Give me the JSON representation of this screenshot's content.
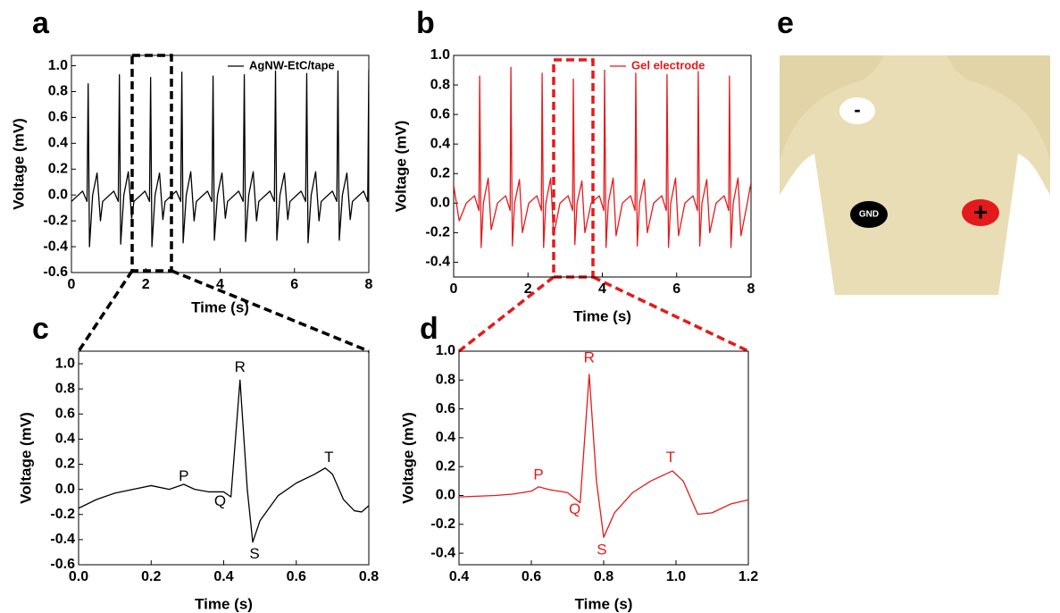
{
  "panel_labels": [
    "a",
    "b",
    "c",
    "d",
    "e"
  ],
  "chart_data": [
    {
      "type": "line",
      "xlabel": "Time (s)",
      "ylabel": "Voltage (mV)",
      "xlim": [
        0,
        8
      ],
      "ylim": [
        -0.6,
        1.08
      ],
      "xticks": [
        0,
        2,
        4,
        6,
        8
      ],
      "yticks": [
        -0.6,
        -0.4,
        -0.2,
        {
          "value": 0,
          "label": "0.0"
        },
        0.2,
        0.4,
        0.6,
        0.8,
        {
          "value": 1,
          "label": "1.0"
        }
      ],
      "legend": "upper right",
      "series": [
        {
          "name": "AgNW-EtC/tape",
          "color": "#000000",
          "x": [
            0.0,
            0.3,
            0.42,
            0.45,
            0.485,
            0.57,
            0.69,
            0.78,
            0.84,
            1.14,
            1.26,
            1.29,
            1.325,
            1.41,
            1.53,
            1.62,
            1.68,
            1.98,
            2.1,
            2.13,
            2.165,
            2.25,
            2.37,
            2.46,
            2.52,
            2.82,
            2.94,
            2.97,
            3.005,
            3.09,
            3.21,
            3.3,
            3.36,
            3.66,
            3.78,
            3.81,
            3.845,
            3.93,
            4.05,
            4.14,
            4.2,
            4.5,
            4.62,
            4.65,
            4.685,
            4.77,
            4.89,
            4.98,
            5.04,
            5.34,
            5.46,
            5.49,
            5.525,
            5.61,
            5.73,
            5.82,
            5.88,
            6.18,
            6.3,
            6.33,
            6.365,
            6.45,
            6.57,
            6.66,
            6.72,
            7.02,
            7.14,
            7.17,
            7.205,
            7.29,
            7.41,
            7.5,
            7.56,
            7.86,
            7.97,
            8.0
          ],
          "values": [
            -0.05,
            0.03,
            -0.05,
            0.86,
            -0.4,
            0.0,
            0.17,
            -0.2,
            -0.05,
            0.03,
            -0.05,
            0.93,
            -0.38,
            0.0,
            0.18,
            -0.18,
            -0.05,
            0.03,
            -0.05,
            0.91,
            -0.4,
            0.0,
            0.17,
            -0.19,
            -0.05,
            0.03,
            -0.05,
            0.95,
            -0.37,
            0.0,
            0.18,
            -0.2,
            -0.05,
            0.03,
            -0.05,
            0.92,
            -0.35,
            0.0,
            0.17,
            -0.18,
            -0.05,
            0.03,
            -0.05,
            0.93,
            -0.36,
            0.0,
            0.18,
            -0.2,
            -0.05,
            0.03,
            -0.05,
            0.96,
            -0.35,
            0.0,
            0.17,
            -0.19,
            -0.05,
            0.03,
            -0.05,
            0.94,
            -0.37,
            0.0,
            0.18,
            -0.2,
            -0.05,
            0.03,
            -0.05,
            0.96,
            -0.35,
            0.0,
            0.17,
            -0.19,
            -0.05,
            0.03,
            -0.05,
            0.97
          ]
        }
      ]
    },
    {
      "type": "line",
      "xlabel": "Time (s)",
      "ylabel": "Voltage (mV)",
      "xlim": [
        0,
        8
      ],
      "ylim": [
        -0.5,
        1.0
      ],
      "xticks": [
        0,
        2,
        4,
        6,
        8
      ],
      "yticks": [
        -0.4,
        -0.2,
        {
          "value": 0,
          "label": "0.0"
        },
        0.2,
        0.4,
        0.6,
        0.8,
        {
          "value": 1,
          "label": "1.0"
        }
      ],
      "legend": "upper right",
      "series": [
        {
          "name": "Gel electrode",
          "color": "#e41a1c",
          "x": [
            0.0,
            0.15,
            0.34,
            0.56,
            0.68,
            0.7,
            0.74,
            0.8,
            0.93,
            1.01,
            1.18,
            1.4,
            1.52,
            1.54,
            1.58,
            1.64,
            1.77,
            1.85,
            2.02,
            2.24,
            2.36,
            2.38,
            2.42,
            2.48,
            2.61,
            2.69,
            2.86,
            3.08,
            3.2,
            3.22,
            3.26,
            3.32,
            3.45,
            3.53,
            3.7,
            3.92,
            4.04,
            4.06,
            4.1,
            4.16,
            4.29,
            4.37,
            4.54,
            4.76,
            4.88,
            4.9,
            4.94,
            5.0,
            5.13,
            5.21,
            5.38,
            5.6,
            5.72,
            5.74,
            5.78,
            5.84,
            5.97,
            6.05,
            6.22,
            6.44,
            6.56,
            6.58,
            6.62,
            6.68,
            6.81,
            6.89,
            7.06,
            7.28,
            7.4,
            7.42,
            7.46,
            7.52,
            7.65,
            7.73,
            7.9,
            8.0
          ],
          "values": [
            0.12,
            -0.12,
            0.0,
            0.05,
            -0.05,
            0.86,
            -0.3,
            0.0,
            0.17,
            -0.18,
            0.0,
            0.05,
            -0.05,
            0.92,
            -0.29,
            0.0,
            0.16,
            -0.2,
            0.0,
            0.05,
            -0.05,
            0.88,
            -0.3,
            0.0,
            0.17,
            -0.22,
            0.0,
            0.05,
            -0.05,
            0.84,
            -0.28,
            0.0,
            0.15,
            -0.2,
            0.0,
            0.05,
            -0.05,
            0.9,
            -0.3,
            0.0,
            0.17,
            -0.22,
            0.0,
            0.05,
            -0.05,
            0.88,
            -0.29,
            0.0,
            0.16,
            -0.2,
            0.0,
            0.05,
            -0.05,
            0.87,
            -0.3,
            0.0,
            0.17,
            -0.22,
            0.0,
            0.05,
            -0.05,
            0.89,
            -0.29,
            0.0,
            0.16,
            -0.2,
            0.0,
            0.05,
            -0.05,
            0.86,
            -0.3,
            0.0,
            0.17,
            -0.22,
            0.0,
            0.14
          ]
        }
      ]
    },
    {
      "type": "line",
      "xlabel": "Time (s)",
      "ylabel": "Voltage (mV)",
      "xlim": [
        0,
        0.8
      ],
      "ylim": [
        -0.6,
        1.1
      ],
      "xticks": [
        {
          "value": 0,
          "label": "0.0"
        },
        0.2,
        0.4,
        0.6,
        0.8
      ],
      "yticks": [
        -0.6,
        -0.4,
        -0.2,
        {
          "value": 0,
          "label": "0.0"
        },
        0.2,
        0.4,
        0.6,
        0.8,
        {
          "value": 1,
          "label": "1.0"
        }
      ],
      "annotations": [
        "P",
        "Q",
        "R",
        "S",
        "T"
      ],
      "series": [
        {
          "color": "#000000",
          "x": [
            0,
            0.05,
            0.1,
            0.15,
            0.2,
            0.25,
            0.29,
            0.32,
            0.36,
            0.4,
            0.42,
            0.445,
            0.465,
            0.48,
            0.5,
            0.55,
            0.6,
            0.65,
            0.68,
            0.7,
            0.73,
            0.76,
            0.78,
            0.8
          ],
          "values": [
            -0.15,
            -0.08,
            -0.03,
            0.0,
            0.03,
            0.0,
            0.04,
            0.0,
            -0.02,
            -0.02,
            -0.06,
            0.87,
            0.0,
            -0.42,
            -0.25,
            -0.05,
            0.05,
            0.12,
            0.17,
            0.12,
            -0.08,
            -0.17,
            -0.18,
            -0.13
          ]
        }
      ]
    },
    {
      "type": "line",
      "xlabel": "Time (s)",
      "ylabel": "Voltage (mV)",
      "xlim": [
        0.4,
        1.2
      ],
      "ylim": [
        -0.48,
        1.0
      ],
      "xticks": [
        0.4,
        0.6,
        0.8,
        {
          "value": 1,
          "label": "1.0"
        },
        1.2
      ],
      "yticks": [
        -0.4,
        -0.2,
        {
          "value": 0,
          "label": "0.0"
        },
        0.2,
        0.4,
        0.6,
        0.8,
        {
          "value": 1,
          "label": "1.0"
        }
      ],
      "annotations": [
        "P",
        "Q",
        "R",
        "S",
        "T"
      ],
      "series": [
        {
          "color": "#e41a1c",
          "x": [
            0.4,
            0.5,
            0.55,
            0.6,
            0.62,
            0.65,
            0.7,
            0.735,
            0.76,
            0.78,
            0.8,
            0.83,
            0.88,
            0.93,
            0.99,
            1.02,
            1.06,
            1.1,
            1.15,
            1.2
          ],
          "values": [
            -0.01,
            0.0,
            0.01,
            0.03,
            0.06,
            0.04,
            0.02,
            -0.05,
            0.84,
            0.1,
            -0.29,
            -0.12,
            0.02,
            0.1,
            0.17,
            0.1,
            -0.13,
            -0.12,
            -0.06,
            -0.03
          ]
        }
      ]
    }
  ],
  "illustration": {
    "electrodes": [
      "-",
      "GND",
      "+"
    ]
  }
}
